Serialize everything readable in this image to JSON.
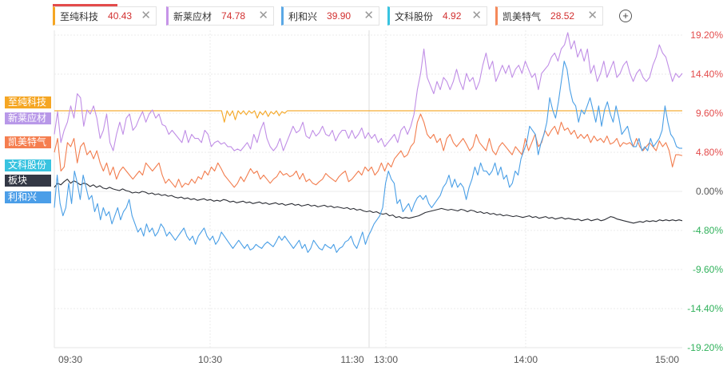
{
  "tabs": [
    {
      "name": "至纯科技",
      "value": "40.43",
      "color": "#f5a623"
    },
    {
      "name": "新莱应材",
      "value": "74.78",
      "color": "#c694e8"
    },
    {
      "name": "利和兴",
      "value": "39.90",
      "color": "#5aa8e6"
    },
    {
      "name": "文科股份",
      "value": "4.92",
      "color": "#38c3e0"
    },
    {
      "name": "凯美特气",
      "value": "28.52",
      "color": "#f5895a"
    }
  ],
  "value_color": "#d23030",
  "add_icon": "plus-circle-icon",
  "close_icon": "close-icon",
  "left_labels": [
    {
      "text": "至纯科技",
      "color": "#f5a623"
    },
    {
      "text": "新莱应材",
      "color": "#b898e8"
    },
    {
      "text": "凯美特气",
      "color": "#f57e4f"
    },
    {
      "text": "文科股份",
      "color": "#38c3e0"
    },
    {
      "text": "板块",
      "color": "#333845"
    },
    {
      "text": "利和兴",
      "color": "#4b9ee8"
    }
  ],
  "chart_data": {
    "type": "line",
    "x_ticks": [
      "09:30",
      "10:30",
      "11:30",
      "13:00",
      "14:00",
      "15:00"
    ],
    "y_ticks": [
      "19.20%",
      "14.40%",
      "9.60%",
      "4.80%",
      "0.00%",
      "-4.80%",
      "-9.60%",
      "-14.40%",
      "-19.20%"
    ],
    "ylim": [
      -19.2,
      19.2
    ],
    "grid": true,
    "series": [
      {
        "name": "至纯科技",
        "color": "#f5a623",
        "values": [
          9.9,
          9.9,
          9.9,
          9.9,
          9.9,
          9.9,
          9.9,
          9.9,
          9.9,
          9.9,
          9.9,
          9.9,
          9.9,
          9.9,
          9.9,
          9.9,
          9.9,
          9.9,
          9.9,
          9.9,
          9.9,
          9.9,
          9.9,
          9.9,
          9.9,
          9.9,
          9.9,
          9.9,
          9.9,
          9.9,
          9.9,
          9.9,
          9.9,
          9.9,
          9.9,
          9.9,
          9.9,
          9.9,
          9.9,
          9.9,
          9.9,
          9.9,
          9.9,
          9.9,
          9.9,
          9.9,
          9.9,
          9.9,
          9.9,
          9.9,
          9.9,
          9.9,
          9.9,
          9.9,
          9.9,
          9.9,
          9.9,
          9.9,
          9.9,
          9.9,
          9.9,
          9.9,
          8.5,
          9.9,
          9.3,
          9.9,
          8.8,
          9.9,
          9.5,
          9.9,
          9.4,
          9.9,
          9.6,
          9.9,
          9.0,
          9.8,
          9.4,
          9.9,
          9.2,
          9.8,
          9.5,
          9.9,
          9.3,
          9.8,
          9.6,
          9.9,
          9.9,
          9.9,
          9.9,
          9.9,
          9.9,
          9.9,
          9.9,
          9.9,
          9.9,
          9.9,
          9.9,
          9.9,
          9.9,
          9.9,
          9.9,
          9.9,
          9.9,
          9.9,
          9.9,
          9.9,
          9.9,
          9.9,
          9.9,
          9.9,
          9.9,
          9.9,
          9.9,
          9.9,
          9.9,
          9.9,
          9.9,
          9.9,
          9.9,
          9.9,
          9.9,
          9.9,
          9.9,
          9.9,
          9.9,
          9.9,
          9.9,
          9.9,
          9.9,
          9.9,
          9.9,
          9.9,
          9.9,
          9.9,
          9.9,
          9.9,
          9.9,
          9.9,
          9.9,
          9.9,
          9.9,
          9.9,
          9.9,
          9.9,
          9.9,
          9.9,
          9.9,
          9.9,
          9.9,
          9.9,
          9.9,
          9.9,
          9.9,
          9.9,
          9.9,
          9.9,
          9.9,
          9.9,
          9.9,
          9.9,
          9.9,
          9.9,
          9.9,
          9.9,
          9.9,
          9.9,
          9.9,
          9.9,
          9.9,
          9.9,
          9.9,
          9.9,
          9.9,
          9.9,
          9.9,
          9.9,
          9.9,
          9.9,
          9.9,
          9.9,
          9.9,
          9.9,
          9.9,
          9.9,
          9.9,
          9.9,
          9.9,
          9.9,
          9.9,
          9.9,
          9.9,
          9.9,
          9.9,
          9.9,
          9.9,
          9.9,
          9.9,
          9.9,
          9.9,
          9.9,
          9.9,
          9.9,
          9.9,
          9.9,
          9.9,
          9.9,
          9.9,
          9.9,
          9.9,
          9.9,
          9.9,
          9.9,
          9.9,
          9.9,
          9.9,
          9.9,
          9.9,
          9.9,
          9.9,
          9.9,
          9.9,
          9.9,
          9.9,
          9.9,
          9.9,
          9.9,
          9.9,
          9.9,
          9.9,
          9.9
        ]
      },
      {
        "name": "新莱应材",
        "color": "#c08ee6",
        "values": [
          7.0,
          9.8,
          6.0,
          7.5,
          8.5,
          10.5,
          9.0,
          12.0,
          11.5,
          8.0,
          10.0,
          9.5,
          10.5,
          9.0,
          6.5,
          7.5,
          9.5,
          6.0,
          5.0,
          7.0,
          8.5,
          7.0,
          9.0,
          9.5,
          7.5,
          8.0,
          9.0,
          9.8,
          8.5,
          9.5,
          10.0,
          9.0,
          9.5,
          8.2,
          8.0,
          7.0,
          7.5,
          7.0,
          6.5,
          6.0,
          7.5,
          6.0,
          7.0,
          6.5,
          6.5,
          6.0,
          7.5,
          7.0,
          5.5,
          6.0,
          6.2,
          5.8,
          6.0,
          5.5,
          5.5,
          5.0,
          5.2,
          5.0,
          5.5,
          6.0,
          5.2,
          7.0,
          6.0,
          7.5,
          8.5,
          6.5,
          5.5,
          5.0,
          5.5,
          6.5,
          5.0,
          6.0,
          7.0,
          8.0,
          7.2,
          7.5,
          8.5,
          6.8,
          6.5,
          7.5,
          6.8,
          7.2,
          8.0,
          7.0,
          6.8,
          7.5,
          6.2,
          7.0,
          7.5,
          7.5,
          6.5,
          7.5,
          6.5,
          7.0,
          7.8,
          6.5,
          7.2,
          6.5,
          7.0,
          6.0,
          6.5,
          5.5,
          6.0,
          6.5,
          7.0,
          6.0,
          7.5,
          8.0,
          7.0,
          8.0,
          9.5,
          12.5,
          14.5,
          17.5,
          14.0,
          13.0,
          12.0,
          13.5,
          12.5,
          14.0,
          13.5,
          12.5,
          13.5,
          15.0,
          13.5,
          12.5,
          14.5,
          13.5,
          14.0,
          12.5,
          13.5,
          15.5,
          17.0,
          15.0,
          16.0,
          13.5,
          14.5,
          15.5,
          14.5,
          15.5,
          14.0,
          15.0,
          15.5,
          14.5,
          16.0,
          15.0,
          14.0,
          14.5,
          12.5,
          14.5,
          15.0,
          15.5,
          16.5,
          17.0,
          16.0,
          17.5,
          18.0,
          19.5,
          17.5,
          18.5,
          16.5,
          17.5,
          16.0,
          17.5,
          14.5,
          15.5,
          13.5,
          14.5,
          16.0,
          14.0,
          15.0,
          16.0,
          14.0,
          14.5,
          15.5,
          16.0,
          14.5,
          13.5,
          14.5,
          15.0,
          14.0,
          13.5,
          14.0,
          15.5,
          16.5,
          18.0,
          17.0,
          16.5,
          15.0,
          13.5,
          14.5,
          14.0,
          14.5
        ]
      },
      {
        "name": "凯美特气",
        "color": "#f27d4e",
        "values": [
          4.8,
          6.5,
          2.5,
          3.0,
          6.0,
          5.5,
          6.5,
          3.5,
          5.5,
          6.0,
          4.5,
          5.0,
          4.0,
          5.0,
          3.5,
          2.5,
          3.5,
          2.0,
          3.0,
          1.5,
          2.5,
          3.0,
          2.5,
          2.0,
          1.5,
          2.0,
          2.5,
          2.0,
          3.5,
          3.0,
          2.5,
          3.0,
          3.5,
          2.0,
          1.0,
          1.5,
          1.0,
          0.5,
          1.5,
          0.5,
          1.0,
          0.8,
          1.5,
          1.0,
          1.8,
          1.5,
          2.5,
          2.0,
          3.0,
          2.5,
          3.5,
          2.8,
          2.0,
          1.5,
          1.0,
          0.5,
          1.0,
          1.8,
          1.2,
          2.0,
          2.8,
          2.2,
          2.5,
          1.5,
          2.0,
          1.5,
          1.0,
          1.5,
          1.8,
          2.5,
          2.0,
          2.2,
          1.8,
          2.0,
          2.5,
          1.5,
          2.2,
          1.2,
          1.5,
          1.0,
          0.8,
          1.2,
          1.5,
          2.2,
          1.8,
          1.5,
          1.2,
          1.8,
          2.2,
          2.5,
          1.2,
          1.5,
          2.0,
          2.5,
          2.0,
          3.0,
          2.5,
          3.0,
          2.0,
          2.5,
          3.5,
          2.5,
          3.5,
          3.0,
          4.0,
          4.5,
          5.0,
          4.2,
          4.5,
          5.5,
          6.0,
          8.5,
          9.5,
          8.5,
          7.0,
          6.5,
          7.0,
          6.0,
          6.5,
          5.0,
          6.5,
          7.0,
          6.0,
          5.5,
          6.0,
          6.5,
          5.8,
          5.0,
          5.5,
          7.0,
          6.0,
          5.5,
          5.0,
          6.5,
          5.0,
          4.5,
          5.5,
          6.0,
          5.5,
          5.0,
          4.5,
          5.5,
          5.0,
          4.5,
          6.5,
          5.0,
          6.0,
          7.0,
          5.5,
          6.0,
          7.5,
          6.8,
          7.5,
          8.0,
          7.0,
          8.5,
          7.5,
          7.8,
          7.0,
          7.5,
          6.5,
          7.0,
          6.5,
          7.0,
          6.0,
          6.8,
          6.2,
          6.5,
          6.0,
          6.8,
          5.8,
          6.0,
          6.5,
          5.5,
          6.0,
          5.8,
          6.0,
          5.5,
          6.5,
          5.5,
          5.0,
          5.5,
          6.0,
          5.5,
          5.0,
          6.2,
          5.5,
          6.0,
          5.0,
          3.0,
          4.5,
          4.5,
          4.4
        ]
      },
      {
        "name": "板块",
        "color": "#2b2d34",
        "values": [
          0.5,
          1.0,
          0.8,
          1.2,
          1.5,
          1.0,
          1.3,
          1.1,
          0.8,
          1.0,
          0.9,
          0.6,
          0.8,
          0.5,
          0.7,
          0.4,
          0.3,
          0.5,
          0.3,
          0.2,
          0.1,
          0.3,
          0.1,
          0.0,
          -0.2,
          -0.1,
          -0.2,
          0.0,
          -0.1,
          -0.3,
          -0.2,
          -0.4,
          -0.3,
          -0.5,
          -0.4,
          -0.6,
          -0.5,
          -0.7,
          -0.8,
          -0.7,
          -0.9,
          -0.8,
          -1.0,
          -0.9,
          -1.1,
          -1.0,
          -0.9,
          -1.1,
          -1.0,
          -1.2,
          -1.1,
          -1.2,
          -1.0,
          -1.1,
          -1.3,
          -1.2,
          -1.4,
          -1.3,
          -1.2,
          -1.4,
          -1.3,
          -1.5,
          -1.4,
          -1.3,
          -1.5,
          -1.4,
          -1.6,
          -1.5,
          -1.4,
          -1.6,
          -1.5,
          -1.7,
          -1.6,
          -1.5,
          -1.7,
          -1.6,
          -1.8,
          -1.7,
          -1.6,
          -1.8,
          -1.7,
          -1.9,
          -1.8,
          -1.7,
          -1.9,
          -1.8,
          -2.0,
          -1.9,
          -2.0,
          -2.1,
          -2.0,
          -2.2,
          -2.1,
          -2.3,
          -2.2,
          -2.4,
          -2.5,
          -2.4,
          -2.6,
          -2.5,
          -2.7,
          -2.8,
          -2.7,
          -3.0,
          -2.9,
          -3.2,
          -3.1,
          -3.3,
          -3.2,
          -3.3,
          -3.2,
          -3.1,
          -3.0,
          -2.8,
          -2.6,
          -2.5,
          -2.4,
          -2.3,
          -2.2,
          -2.1,
          -2.2,
          -2.3,
          -2.2,
          -2.3,
          -2.4,
          -2.2,
          -2.3,
          -2.5,
          -2.3,
          -2.4,
          -2.6,
          -2.5,
          -2.7,
          -2.6,
          -2.8,
          -2.7,
          -2.9,
          -2.8,
          -3.0,
          -2.9,
          -3.0,
          -3.1,
          -3.0,
          -3.1,
          -3.2,
          -3.1,
          -3.0,
          -3.2,
          -3.1,
          -3.3,
          -3.2,
          -3.1,
          -3.3,
          -3.2,
          -3.4,
          -3.3,
          -3.2,
          -3.4,
          -3.3,
          -3.4,
          -3.5,
          -3.4,
          -3.6,
          -3.5,
          -3.4,
          -3.6,
          -3.5,
          -3.4,
          -3.6,
          -3.5,
          -3.3,
          -3.1,
          -3.2,
          -3.4,
          -3.5,
          -3.6,
          -3.7,
          -3.8,
          -3.9,
          -3.8,
          -3.7,
          -3.8,
          -3.6,
          -3.7,
          -3.6,
          -3.7,
          -3.5,
          -3.6,
          -3.5,
          -3.6,
          -3.5,
          -3.6,
          -3.5,
          -3.6
        ]
      },
      {
        "name": "利和兴",
        "color": "#4a9fe6",
        "values": [
          -2.0,
          2.0,
          -1.5,
          -3.0,
          -2.0,
          1.0,
          -1.5,
          2.5,
          1.0,
          -1.0,
          2.0,
          0.5,
          -1.0,
          -0.5,
          -2.5,
          -1.5,
          -3.5,
          -2.0,
          -3.0,
          -2.5,
          -4.0,
          -3.0,
          -2.0,
          -3.5,
          -2.5,
          -2.0,
          -1.0,
          -3.0,
          -4.0,
          -5.0,
          -4.5,
          -5.5,
          -4.0,
          -5.0,
          -4.5,
          -5.5,
          -5.0,
          -4.0,
          -4.5,
          -5.5,
          -5.0,
          -5.5,
          -6.0,
          -5.5,
          -5.0,
          -4.5,
          -5.5,
          -6.0,
          -5.5,
          -6.5,
          -5.5,
          -5.0,
          -4.5,
          -5.5,
          -6.0,
          -5.5,
          -6.5,
          -6.0,
          -5.0,
          -5.5,
          -6.0,
          -6.5,
          -7.0,
          -6.5,
          -6.0,
          -6.5,
          -7.0,
          -6.5,
          -7.2,
          -7.0,
          -6.5,
          -6.8,
          -7.0,
          -6.5,
          -6.2,
          -6.5,
          -6.8,
          -6.2,
          -5.5,
          -6.0,
          -5.5,
          -6.0,
          -6.5,
          -7.0,
          -6.5,
          -6.0,
          -7.0,
          -6.5,
          -7.5,
          -7.0,
          -6.0,
          -6.5,
          -7.0,
          -7.2,
          -6.5,
          -6.8,
          -7.0,
          -6.5,
          -7.5,
          -7.0,
          -6.8,
          -6.2,
          -6.0,
          -5.5,
          -6.5,
          -7.0,
          -6.0,
          -5.0,
          -6.5,
          -5.5,
          -4.8,
          -4.0,
          -3.5,
          -3.0,
          -2.0,
          1.0,
          2.5,
          1.5,
          1.0,
          -1.5,
          -1.0,
          -2.5,
          -2.0,
          -1.5,
          -2.5,
          -1.5,
          -0.8,
          -0.5,
          -1.0,
          -0.5,
          -1.5,
          -2.0,
          -1.5,
          -1.0,
          -0.5,
          0.5,
          1.0,
          2.0,
          0.5,
          1.5,
          0.5,
          1.0,
          0.5,
          -1.0,
          0.5,
          1.5,
          3.0,
          2.0,
          3.5,
          2.5,
          2.5,
          2.0,
          2.5,
          3.5,
          2.0,
          3.0,
          1.5,
          2.0,
          0.5,
          1.0,
          2.5,
          2.0,
          4.0,
          5.0,
          6.0,
          8.0,
          7.5,
          7.0,
          4.5,
          6.0,
          7.0,
          8.5,
          11.5,
          10.0,
          9.0,
          11.0,
          13.5,
          16.0,
          15.0,
          12.5,
          11.0,
          10.5,
          8.5,
          10.0,
          9.5,
          10.5,
          11.5,
          10.0,
          8.5,
          10.5,
          8.0,
          10.0,
          11.0,
          9.5,
          8.5,
          10.5,
          9.0,
          7.0,
          7.5,
          8.0,
          6.5,
          5.5,
          5.5,
          6.5,
          5.0,
          5.5,
          5.0,
          6.5,
          5.5,
          6.0,
          6.5,
          7.5,
          10.5,
          8.5,
          7.0,
          6.5,
          5.5,
          5.3,
          5.3
        ]
      },
      {
        "name": "文科股份",
        "color": "#38c3e0",
        "values": []
      }
    ]
  }
}
